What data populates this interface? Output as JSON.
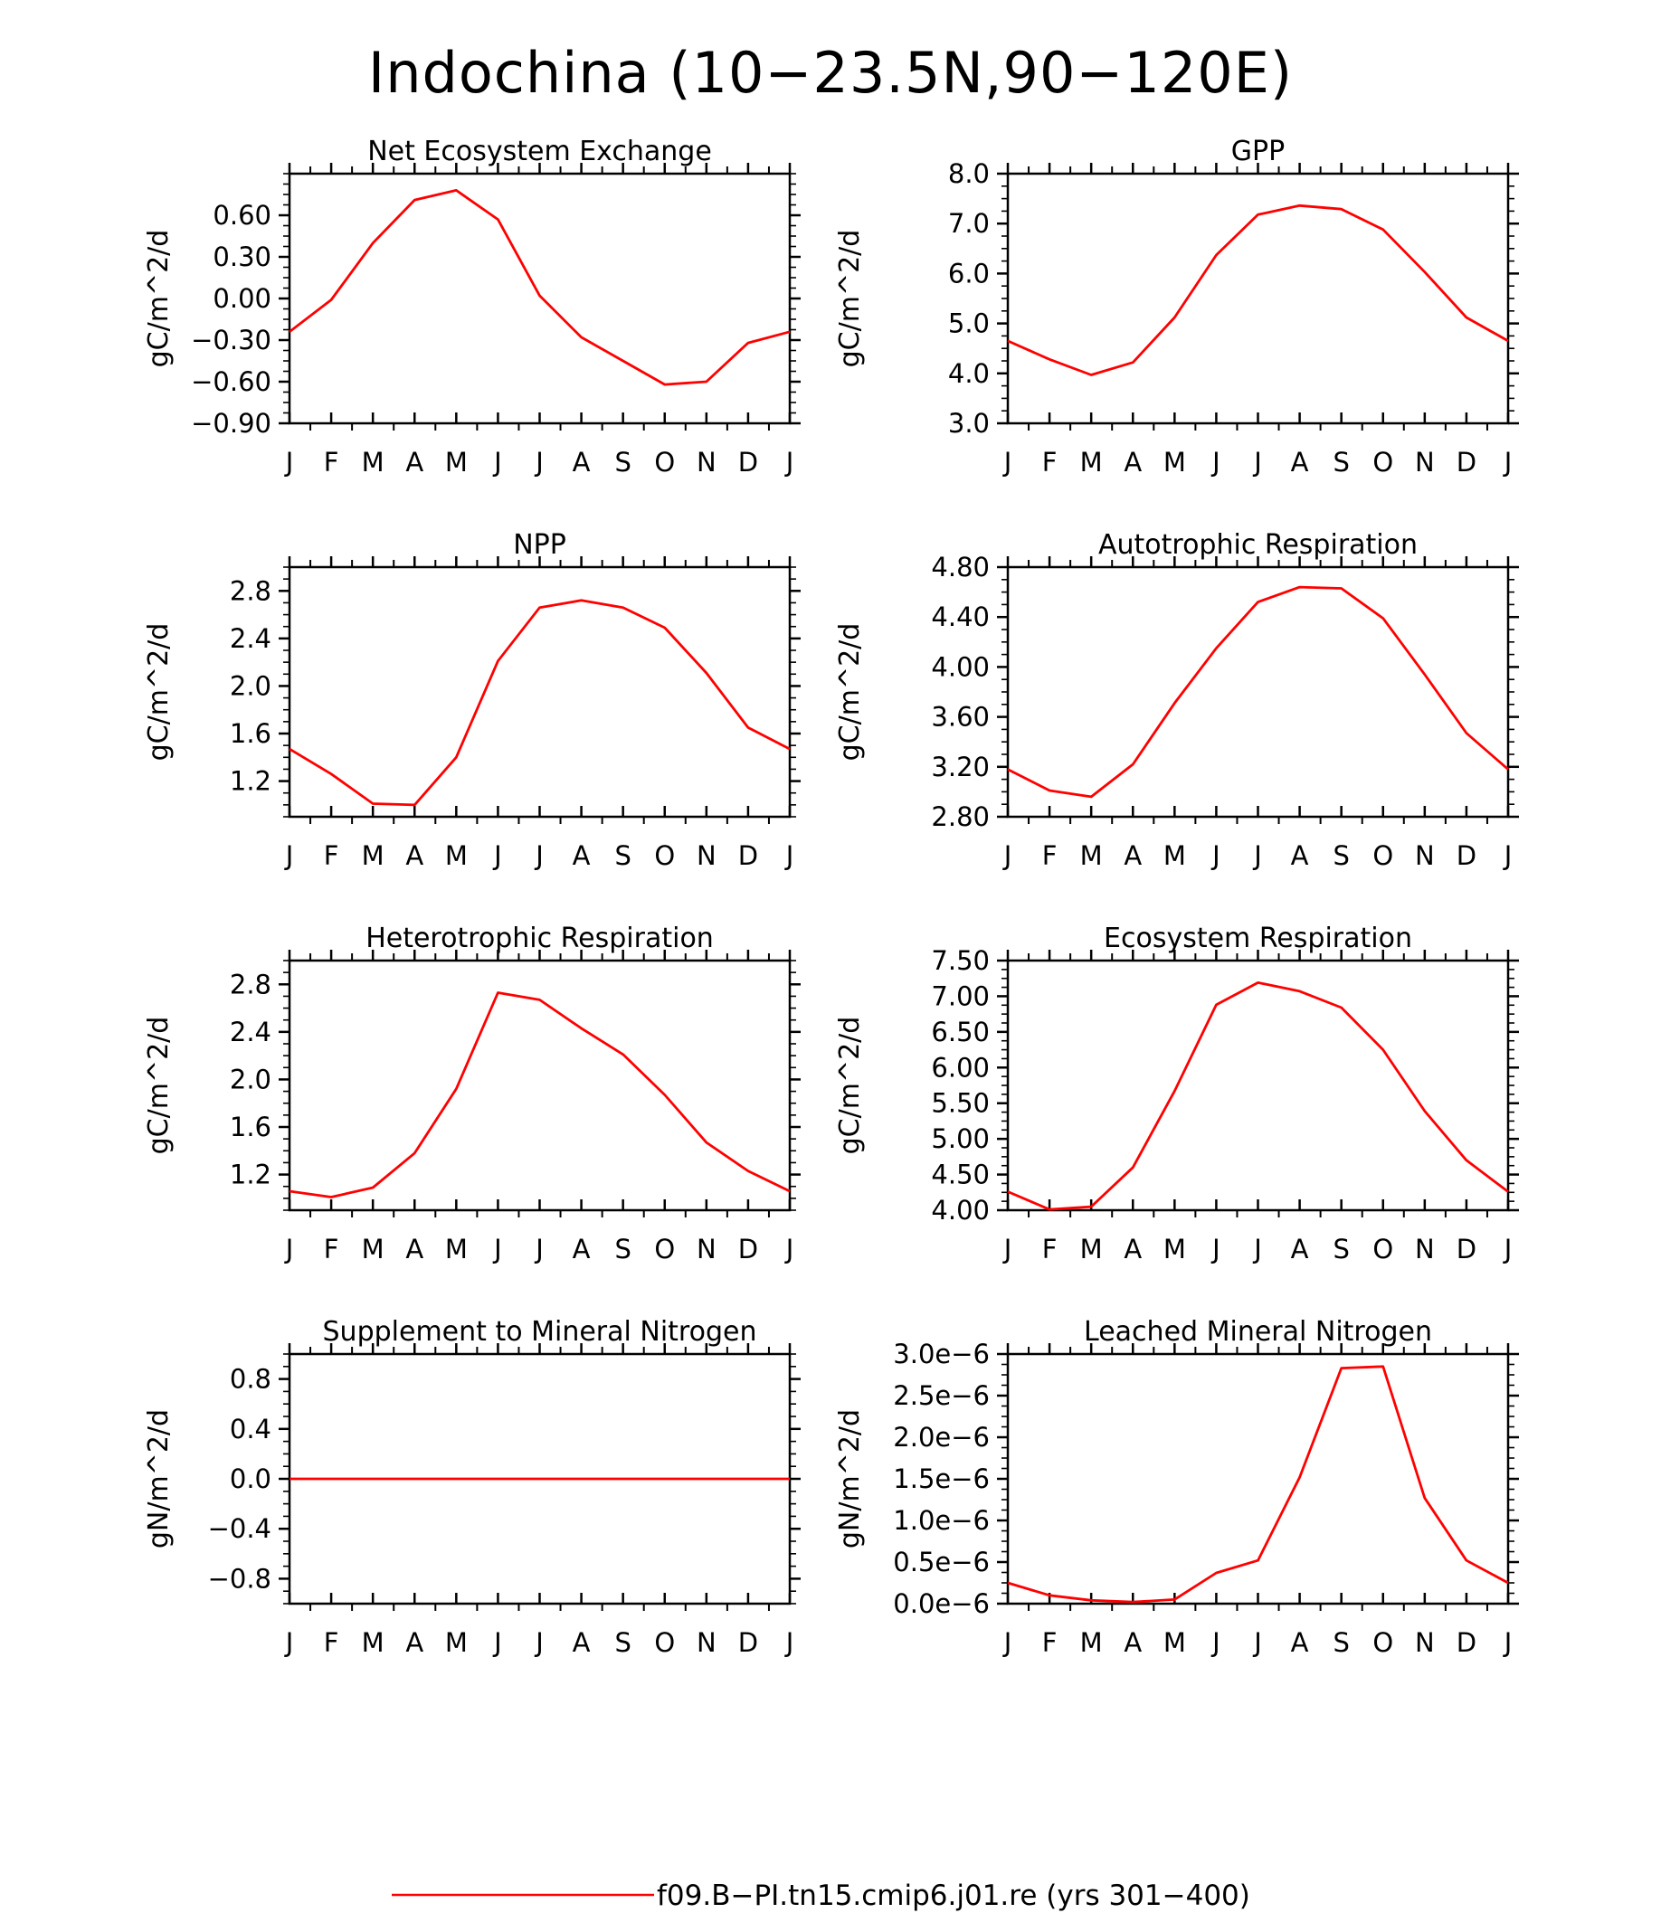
{
  "figure": {
    "title": "Indochina (10-23.5N,90-120E)",
    "months": [
      "J",
      "F",
      "M",
      "A",
      "M",
      "J",
      "J",
      "A",
      "S",
      "O",
      "N",
      "D",
      "J"
    ],
    "legend": {
      "label": "f09.B-PI.tn15.cmip6.j01.re (yrs 301-400)",
      "color": "#ff0000"
    },
    "line_color": "#ff0000"
  },
  "chart_data": [
    {
      "type": "line",
      "title": "Net Ecosystem Exchange",
      "ylabel": "gC/m^2/d",
      "x": [
        "J",
        "F",
        "M",
        "A",
        "M",
        "J",
        "J",
        "A",
        "S",
        "O",
        "N",
        "D",
        "J"
      ],
      "ylim": [
        -0.9,
        0.9
      ],
      "yticks": [
        -0.9,
        -0.6,
        -0.3,
        0.0,
        0.3,
        0.6
      ],
      "ytick_labels": [
        "-0.90",
        "-0.60",
        "-0.30",
        "0.00",
        "0.30",
        "0.60"
      ],
      "series": [
        {
          "values": [
            -0.24,
            -0.01,
            0.4,
            0.71,
            0.78,
            0.57,
            0.02,
            -0.28,
            -0.45,
            -0.62,
            -0.6,
            -0.32,
            -0.24
          ]
        }
      ]
    },
    {
      "type": "line",
      "title": "GPP",
      "ylabel": "gC/m^2/d",
      "x": [
        "J",
        "F",
        "M",
        "A",
        "M",
        "J",
        "J",
        "A",
        "S",
        "O",
        "N",
        "D",
        "J"
      ],
      "ylim": [
        3.0,
        8.0
      ],
      "yticks": [
        3,
        4,
        5,
        6,
        7,
        8
      ],
      "ytick_labels": [
        "3.0",
        "4.0",
        "5.0",
        "6.0",
        "7.0",
        "8.0"
      ],
      "series": [
        {
          "values": [
            4.65,
            4.28,
            3.97,
            4.22,
            5.12,
            6.37,
            7.18,
            7.36,
            7.29,
            6.88,
            6.03,
            5.12,
            4.65
          ]
        }
      ]
    },
    {
      "type": "line",
      "title": "NPP",
      "ylabel": "gC/m^2/d",
      "x": [
        "J",
        "F",
        "M",
        "A",
        "M",
        "J",
        "J",
        "A",
        "S",
        "O",
        "N",
        "D",
        "J"
      ],
      "ylim": [
        0.9,
        3.0
      ],
      "yticks": [
        1.2,
        1.6,
        2.0,
        2.4,
        2.8
      ],
      "ytick_labels": [
        "1.2",
        "1.6",
        "2.0",
        "2.4",
        "2.8"
      ],
      "series": [
        {
          "values": [
            1.47,
            1.26,
            1.01,
            1.0,
            1.4,
            2.21,
            2.66,
            2.72,
            2.66,
            2.49,
            2.11,
            1.65,
            1.47
          ]
        }
      ]
    },
    {
      "type": "line",
      "title": "Autotrophic Respiration",
      "ylabel": "gC/m^2/d",
      "x": [
        "J",
        "F",
        "M",
        "A",
        "M",
        "J",
        "J",
        "A",
        "S",
        "O",
        "N",
        "D",
        "J"
      ],
      "ylim": [
        2.8,
        4.8
      ],
      "yticks": [
        2.8,
        3.2,
        3.6,
        4.0,
        4.4,
        4.8
      ],
      "ytick_labels": [
        "2.80",
        "3.20",
        "3.60",
        "4.00",
        "4.40",
        "4.80"
      ],
      "series": [
        {
          "values": [
            3.18,
            3.01,
            2.96,
            3.22,
            3.71,
            4.15,
            4.52,
            4.64,
            4.63,
            4.39,
            3.94,
            3.47,
            3.18
          ]
        }
      ]
    },
    {
      "type": "line",
      "title": "Heterotrophic Respiration",
      "ylabel": "gC/m^2/d",
      "x": [
        "J",
        "F",
        "M",
        "A",
        "M",
        "J",
        "J",
        "A",
        "S",
        "O",
        "N",
        "D",
        "J"
      ],
      "ylim": [
        0.9,
        3.0
      ],
      "yticks": [
        1.2,
        1.6,
        2.0,
        2.4,
        2.8
      ],
      "ytick_labels": [
        "1.2",
        "1.6",
        "2.0",
        "2.4",
        "2.8"
      ],
      "series": [
        {
          "values": [
            1.06,
            1.01,
            1.09,
            1.38,
            1.92,
            2.73,
            2.67,
            2.43,
            2.21,
            1.87,
            1.47,
            1.23,
            1.06
          ]
        }
      ]
    },
    {
      "type": "line",
      "title": "Ecosystem Respiration",
      "ylabel": "gC/m^2/d",
      "x": [
        "J",
        "F",
        "M",
        "A",
        "M",
        "J",
        "J",
        "A",
        "S",
        "O",
        "N",
        "D",
        "J"
      ],
      "ylim": [
        4.0,
        7.5
      ],
      "yticks": [
        4.0,
        4.5,
        5.0,
        5.5,
        6.0,
        6.5,
        7.0,
        7.5
      ],
      "ytick_labels": [
        "4.00",
        "4.50",
        "5.00",
        "5.50",
        "6.00",
        "6.50",
        "7.00",
        "7.50"
      ],
      "series": [
        {
          "values": [
            4.26,
            4.01,
            4.05,
            4.6,
            5.67,
            6.88,
            7.19,
            7.07,
            6.84,
            6.25,
            5.39,
            4.7,
            4.26
          ]
        }
      ]
    },
    {
      "type": "line",
      "title": "Supplement to Mineral Nitrogen",
      "ylabel": "gN/m^2/d",
      "x": [
        "J",
        "F",
        "M",
        "A",
        "M",
        "J",
        "J",
        "A",
        "S",
        "O",
        "N",
        "D",
        "J"
      ],
      "ylim": [
        -1.0,
        1.0
      ],
      "yticks": [
        -0.8,
        -0.4,
        0.0,
        0.4,
        0.8
      ],
      "ytick_labels": [
        "-0.8",
        "-0.4",
        "0.0",
        "0.4",
        "0.8"
      ],
      "series": [
        {
          "values": [
            0,
            0,
            0,
            0,
            0,
            0,
            0,
            0,
            0,
            0,
            0,
            0,
            0
          ]
        }
      ]
    },
    {
      "type": "line",
      "title": "Leached Mineral Nitrogen",
      "ylabel": "gN/m^2/d",
      "x": [
        "J",
        "F",
        "M",
        "A",
        "M",
        "J",
        "J",
        "A",
        "S",
        "O",
        "N",
        "D",
        "J"
      ],
      "ylim": [
        0.0,
        3e-06
      ],
      "yticks": [
        0.0,
        5e-07,
        1e-06,
        1.5e-06,
        2e-06,
        2.5e-06,
        3e-06
      ],
      "ytick_labels": [
        "0.0e-6",
        "0.5e-6",
        "1.0e-6",
        "1.5e-6",
        "2.0e-6",
        "2.5e-6",
        "3.0e-6"
      ],
      "series": [
        {
          "values": [
            2.5e-07,
            1e-07,
            4e-08,
            2e-08,
            5e-08,
            3.7e-07,
            5.2e-07,
            1.52e-06,
            2.83e-06,
            2.85e-06,
            1.27e-06,
            5.2e-07,
            2.5e-07
          ]
        }
      ]
    }
  ]
}
